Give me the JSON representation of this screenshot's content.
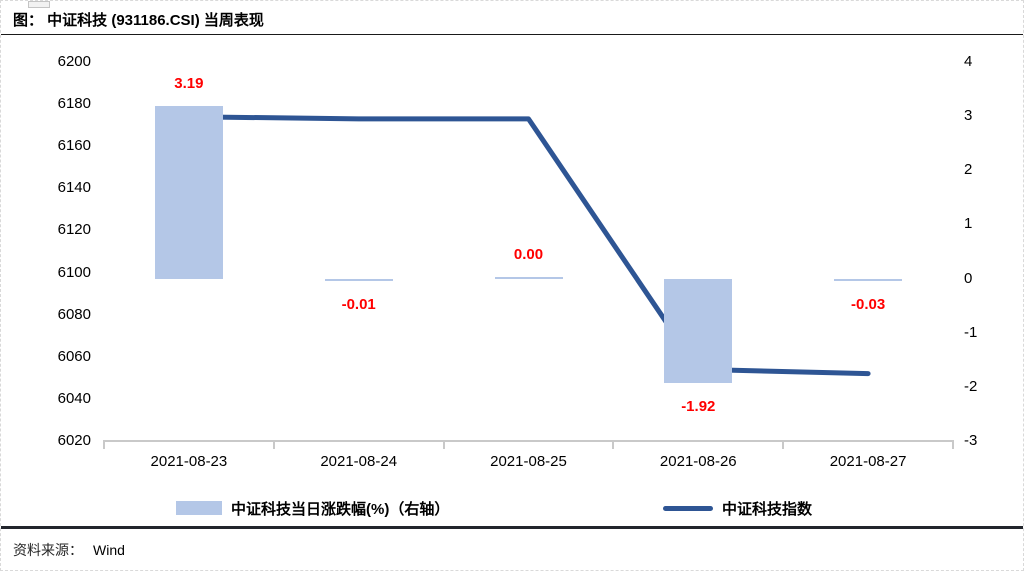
{
  "header": {
    "title": "图： 中证科技 (931186.CSI) 当周表现"
  },
  "footer": {
    "source_label": "资料来源：",
    "source_value": "Wind"
  },
  "legend": {
    "items": [
      {
        "label": "中证科技当日涨跌幅(%)（右轴）",
        "swatch": "bar",
        "color": "#b4c7e7"
      },
      {
        "label": "中证科技指数",
        "swatch": "line",
        "color": "#2e5594"
      }
    ]
  },
  "colors": {
    "bar": "#b4c7e7",
    "line": "#2e5594",
    "data_label": "#ff0000",
    "axis": "#c9c9c9",
    "text": "#000000"
  },
  "chart_data": {
    "type": "combo-bar-line",
    "title": "图： 中证科技 (931186.CSI) 当周表现",
    "categories": [
      "2021-08-23",
      "2021-08-24",
      "2021-08-25",
      "2021-08-26",
      "2021-08-27"
    ],
    "series": [
      {
        "name": "中证科技当日涨跌幅(%)（右轴）",
        "type": "bar",
        "axis": "right",
        "color": "#b4c7e7",
        "values": [
          3.19,
          -0.01,
          0.0,
          -1.92,
          -0.03
        ],
        "data_labels": [
          "3.19",
          "-0.01",
          "0.00",
          "-1.92",
          "-0.03"
        ],
        "data_label_color": "#ff0000"
      },
      {
        "name": "中证科技指数",
        "type": "line",
        "axis": "left",
        "color": "#2e5594",
        "values": [
          6174,
          6173,
          6173,
          6054,
          6052
        ]
      }
    ],
    "left_axis": {
      "min": 6020,
      "max": 6200,
      "step": 20,
      "ticks": [
        "6200",
        "6180",
        "6160",
        "6140",
        "6120",
        "6100",
        "6080",
        "6060",
        "6040",
        "6020"
      ]
    },
    "right_axis": {
      "min": -3,
      "max": 4,
      "step": 1,
      "ticks": [
        "4",
        "3",
        "2",
        "1",
        "0",
        "-1",
        "-2",
        "-3"
      ]
    },
    "grid": false,
    "legend_position": "bottom"
  }
}
